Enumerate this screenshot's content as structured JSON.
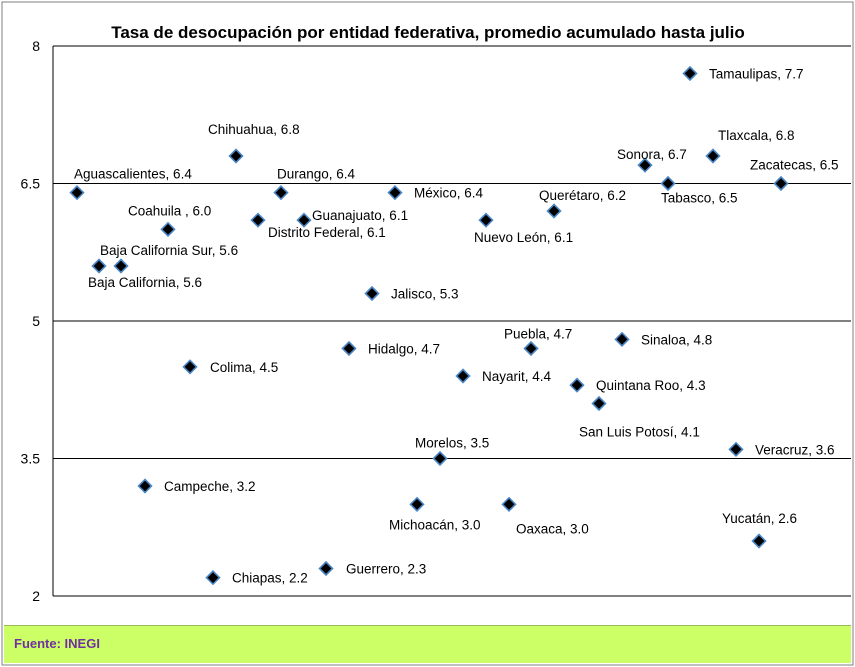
{
  "colors": {
    "marker_fill": "#000000",
    "marker_stroke": "#4a86c5",
    "gridline": "#000000",
    "footer_bg": "#ccff66",
    "footer_text": "#7030a0"
  },
  "footer": {
    "text": "Fuente:  INEGI"
  },
  "chart_data": {
    "type": "scatter",
    "title": "Tasa de desocupación por entidad federativa, promedio acumulado hasta julio",
    "xlabel": "",
    "ylabel": "",
    "ylim": [
      2,
      8
    ],
    "yticks": [
      "2",
      "3.5",
      "5",
      "6.5",
      "8"
    ],
    "grid": "horizontal",
    "points": [
      {
        "label": "Aguascalientes, 6.4",
        "y": 6.4
      },
      {
        "label": "Baja California, 5.6",
        "y": 5.6
      },
      {
        "label": "Baja California Sur, 5.6",
        "y": 5.6
      },
      {
        "label": "Campeche, 3.2",
        "y": 3.2
      },
      {
        "label": "Coahuila , 6.0",
        "y": 6.0
      },
      {
        "label": "Colima, 4.5",
        "y": 4.5
      },
      {
        "label": "Chiapas, 2.2",
        "y": 2.2
      },
      {
        "label": "Chihuahua, 6.8",
        "y": 6.8
      },
      {
        "label": "Distrito Federal, 6.1",
        "y": 6.1
      },
      {
        "label": "Durango, 6.4",
        "y": 6.4
      },
      {
        "label": "Guanajuato, 6.1",
        "y": 6.1
      },
      {
        "label": "Guerrero, 2.3",
        "y": 2.3
      },
      {
        "label": "Hidalgo, 4.7",
        "y": 4.7
      },
      {
        "label": "Jalisco, 5.3",
        "y": 5.3
      },
      {
        "label": "México, 6.4",
        "y": 6.4
      },
      {
        "label": "Michoacán, 3.0",
        "y": 3.0
      },
      {
        "label": "Morelos, 3.5",
        "y": 3.5
      },
      {
        "label": "Nayarit, 4.4",
        "y": 4.4
      },
      {
        "label": "Nuevo León, 6.1",
        "y": 6.1
      },
      {
        "label": "Oaxaca, 3.0",
        "y": 3.0
      },
      {
        "label": "Puebla, 4.7",
        "y": 4.7
      },
      {
        "label": "Querétaro, 6.2",
        "y": 6.2
      },
      {
        "label": "Quintana Roo, 4.3",
        "y": 4.3
      },
      {
        "label": "San Luis Potosí, 4.1",
        "y": 4.1
      },
      {
        "label": "Sinaloa, 4.8",
        "y": 4.8
      },
      {
        "label": "Sonora, 6.7",
        "y": 6.7
      },
      {
        "label": "Tabasco, 6.5",
        "y": 6.5
      },
      {
        "label": "Tamaulipas, 7.7",
        "y": 7.7
      },
      {
        "label": "Tlaxcala, 6.8",
        "y": 6.8
      },
      {
        "label": "Veracruz, 3.6",
        "y": 3.6
      },
      {
        "label": "Yucatán, 2.6",
        "y": 2.6
      },
      {
        "label": "Zacatecas, 6.5",
        "y": 6.5
      }
    ]
  }
}
